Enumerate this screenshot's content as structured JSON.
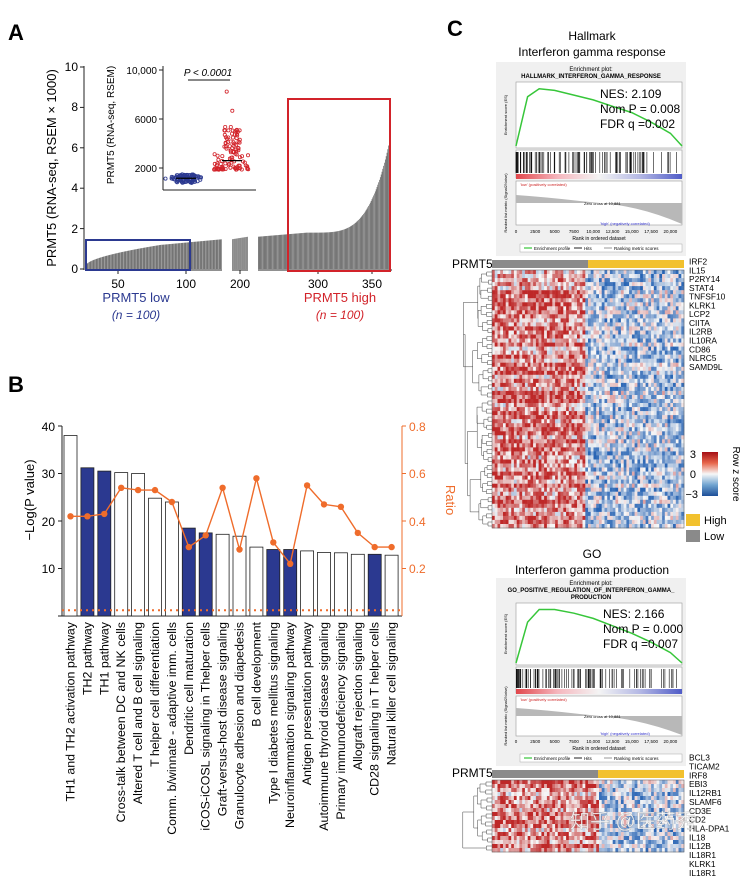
{
  "panels": {
    "a": "A",
    "b": "B",
    "c": "C"
  },
  "panel_a": {
    "ylabel": "PRMT5 (RNA-seq, RSEM × 1000)",
    "ytick_labels": [
      "0",
      "2",
      "4",
      "6",
      "8",
      "10"
    ],
    "xtick_labels": [
      "50",
      "100",
      "200",
      "300",
      "350"
    ],
    "low_label": "PRMT5 low",
    "low_n": "(n = 100)",
    "high_label": "PRMT5 high",
    "high_n": "(n = 100)",
    "inset": {
      "ylabel": "PRMT5 (RNA-seq, RSEM)",
      "ytick_labels": [
        "2000",
        "6000",
        "10,000"
      ],
      "pvalue": "P < 0.0001"
    },
    "colors": {
      "low": "#2b3990",
      "high": "#d2232a",
      "bars": "#555555"
    }
  },
  "chart_data": [
    {
      "type": "bar",
      "title": "",
      "xlabel": "",
      "ylabel": "PRMT5 (RNA-seq, RSEM × 1000)",
      "ylim": [
        0,
        10
      ],
      "n_samples": 373,
      "low_group": {
        "n": 100,
        "approx_range": [
          0.2,
          1.2
        ]
      },
      "mid_group_approx_range": [
        1.2,
        1.8
      ],
      "high_group": {
        "n": 100,
        "approx_range": [
          1.8,
          6.3
        ]
      }
    },
    {
      "type": "bar",
      "title": "",
      "ylabel": "−Log(P value)",
      "y2label": "Ratio",
      "ylim": [
        0,
        40
      ],
      "y2lim": [
        0,
        0.8
      ],
      "threshold_ratio": 0.024,
      "categories": [
        "TH1 and TH2 activation pathway",
        "TH2 pathway",
        "TH1 pathway",
        "Cross-talk between DC and NK cells",
        "Altered T cell and B cell signaling",
        "T helper cell differentiation",
        "Comm. b/winnate - adaptive imm. cells",
        "Dendritic cell maturation",
        "iCOS-iCOSL signaling in Thelper cells",
        "Graft-versus-host disease signaling",
        "Granulocyte adhesion and diapedesis",
        "B cell development",
        "Type I diabetes mellitus signaling",
        "Neuroinflammation signaling pathway",
        "Antigen presentation pathway",
        "Autoimmune thyroid disease signaling",
        "Primary immunodeficiency signaling",
        "Allograft rejection signaling",
        "CD28 signaling in T helper cells",
        "Natural killer cell signaling"
      ],
      "series": [
        {
          "name": "−Log(P value)",
          "values": [
            38,
            31.2,
            30.5,
            30.2,
            30,
            24.8,
            24,
            18.5,
            17.5,
            17.2,
            16.8,
            14.5,
            14,
            14,
            13.7,
            13.4,
            13.3,
            13,
            13,
            12.8
          ]
        },
        {
          "name": "Ratio",
          "values": [
            0.42,
            0.42,
            0.43,
            0.54,
            0.53,
            0.53,
            0.48,
            0.29,
            0.34,
            0.54,
            0.28,
            0.58,
            0.31,
            0.22,
            0.55,
            0.47,
            0.46,
            0.35,
            0.29,
            0.29
          ]
        }
      ],
      "highlighted": [
        false,
        true,
        true,
        false,
        false,
        false,
        false,
        true,
        true,
        false,
        false,
        false,
        true,
        true,
        false,
        false,
        false,
        false,
        true,
        false
      ]
    },
    {
      "type": "line",
      "title": "Enrichment plot: HALLMARK_INTERFERON_GAMMA_RESPONSE",
      "xlabel": "Rank in ordered dataset",
      "ylabel": "Enrichment score (ES)",
      "x": [
        0,
        1500,
        3000,
        5000,
        7500,
        10000,
        12500,
        15000,
        17500,
        20000,
        21500
      ],
      "y": [
        0,
        0.62,
        0.72,
        0.7,
        0.64,
        0.58,
        0.5,
        0.42,
        0.3,
        0.16,
        0
      ]
    },
    {
      "type": "line",
      "title": "Enrichment plot: GO_POSITIVE_REGULATION_OF_INTERFERON_GAMMA_PRODUCTION",
      "xlabel": "Rank in ordered dataset",
      "ylabel": "Enrichment score (ES)",
      "x": [
        0,
        1500,
        3000,
        5000,
        7500,
        10000,
        12500,
        15000,
        17500,
        20000,
        21500
      ],
      "y": [
        0,
        0.55,
        0.72,
        0.72,
        0.67,
        0.6,
        0.5,
        0.4,
        0.28,
        0.14,
        0
      ]
    }
  ],
  "panel_b": {
    "ylabel_left": "−Log(P value)",
    "ylabel_right": "Ratio",
    "ytick_left": [
      "0",
      "10",
      "20",
      "30",
      "40"
    ],
    "ytick_right": [
      "0.2",
      "0.4",
      "0.6",
      "0.8"
    ],
    "colors": {
      "highlight": "#2b3990",
      "ratio": "#ef6c2b"
    }
  },
  "panel_c": {
    "hallmark_title": "Hallmark",
    "hallmark_subtitle": "Interferon gamma response",
    "gsea1": {
      "header": "Enrichment plot:",
      "name": "HALLMARK_INTERFERON_GAMMA_RESPONSE",
      "nes": "NES: 2.109",
      "nom_p": "Nom P = 0.008",
      "fdr": "FDR q =0.002",
      "xticks": [
        "0",
        "2500",
        "5000",
        "7500",
        "10,000",
        "12,500",
        "15,000",
        "17,500",
        "20,000"
      ],
      "pos_label": "'low' (positively correlated)",
      "neg_label": "'high' (negatively correlated)",
      "zero_cross": "Zero cross at 10,881",
      "xlabel": "Rank in ordered dataset",
      "y_metric": "Ranked list metric (Signal2Noise)",
      "y_es": "Enrichment score (ES)",
      "legend": [
        "Enrichment profile",
        "Hits",
        "Ranking metric scores"
      ]
    },
    "heatmap1": {
      "label": "PRMT5",
      "genes": [
        "IRF2",
        "IL15",
        "P2RY14",
        "STAT4",
        "TNFSF10",
        "KLRK1",
        "LCP2",
        "CIITA",
        "IL2RB",
        "IL10RA",
        "CD86",
        "NLRC5",
        "SAMD9L"
      ]
    },
    "scale": {
      "top": "3",
      "mid": "0",
      "bottom": "−3",
      "label": "Row z score"
    },
    "legend": {
      "high": "High",
      "low": "Low",
      "high_color": "#f2c12e",
      "low_color": "#8a8a8a"
    },
    "go_title": "GO",
    "go_subtitle": "Interferon gamma production",
    "gsea2": {
      "header": "Enrichment plot:",
      "name": "GO_POSITIVE_REGULATION_OF_INTERFERON_GAMMA_",
      "name2": "PRODUCTION",
      "nes": "NES: 2.166",
      "nom_p": "Nom P = 0.000",
      "fdr": "FDR q =0.007",
      "xticks": [
        "0",
        "2500",
        "5000",
        "7500",
        "10,000",
        "12,500",
        "15,000",
        "17,500",
        "20,000"
      ],
      "pos_label": "'low' (positively correlated)",
      "neg_label": "'high' (negatively correlated)",
      "zero_cross": "Zero cross at 10,881",
      "xlabel": "Rank in ordered dataset",
      "y_metric": "Ranked list metric (Signal2Noise)",
      "y_es": "Enrichment score (ES)",
      "legend": [
        "Enrichment profile",
        "Hits",
        "Ranking metric scores"
      ]
    },
    "heatmap2": {
      "label": "PRMT5",
      "genes": [
        "BCL3",
        "TICAM2",
        "IRF8",
        "EBI3",
        "IL12RB1",
        "SLAMF6",
        "CD3E",
        "CD2",
        "HLA-DPA1",
        "IL18",
        "IL12B",
        "IL18R1",
        "KLRK1",
        "IL18R1"
      ]
    }
  },
  "watermark": "知乎 @医药秀"
}
